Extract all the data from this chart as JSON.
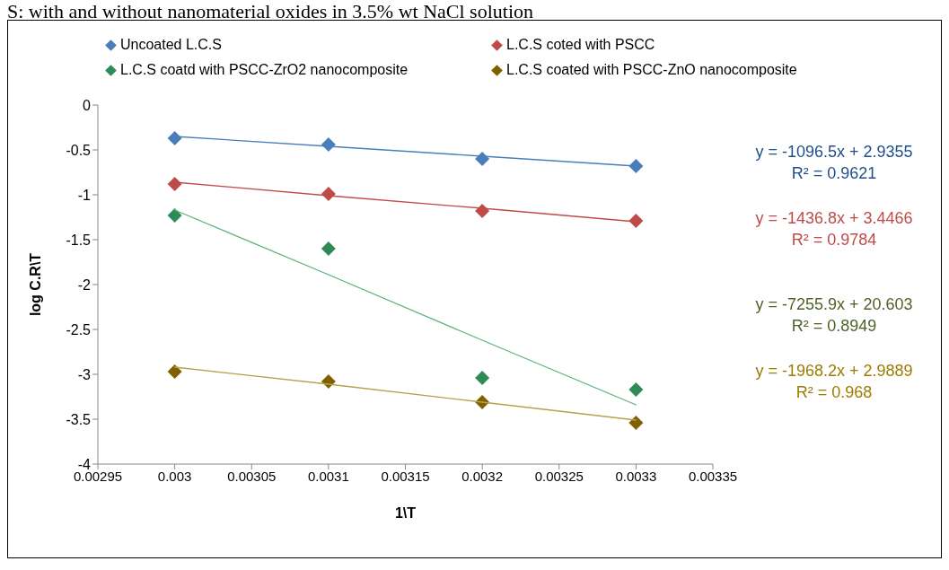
{
  "chart_data": {
    "type": "scatter",
    "title": "S: with and without  nanomaterial oxides in 3.5% wt NaCl solution",
    "xlabel": "1\\T",
    "ylabel": "log C.R\\T",
    "x": [
      0.003,
      0.0031,
      0.0032,
      0.0033
    ],
    "series": [
      {
        "name": "Uncoated L.C.S",
        "color": "#4a7ebb",
        "values": [
          -0.37,
          -0.44,
          -0.6,
          -0.68
        ]
      },
      {
        "name": "L.C.S coted with PSCC",
        "color": "#be4b48",
        "values": [
          -0.88,
          -0.99,
          -1.18,
          -1.29
        ]
      },
      {
        "name": "L.C.S coatd with PSCC-ZrO2 nanocomposite",
        "color": "#2e8b57",
        "values": [
          -1.23,
          -1.6,
          -3.04,
          -3.17
        ]
      },
      {
        "name": "L.C.S coated with PSCC-ZnO nanocomposite",
        "color": "#7f6000",
        "values": [
          -2.97,
          -3.08,
          -3.31,
          -3.54
        ]
      },
      {
        "type": "line",
        "marker": "none",
        "color": "#4a7ebb",
        "values": [
          -0.35,
          -0.46,
          -0.57,
          -0.68
        ]
      },
      {
        "type": "line",
        "marker": "none",
        "color": "#be4b48",
        "values": [
          -0.86,
          -1.01,
          -1.15,
          -1.3
        ]
      },
      {
        "type": "line",
        "marker": "none",
        "color": "#5fb47a",
        "values": [
          -1.17,
          -1.89,
          -2.62,
          -3.34
        ]
      },
      {
        "type": "line",
        "marker": "none",
        "color": "#b8a04a",
        "values": [
          -2.92,
          -3.11,
          -3.31,
          -3.51
        ]
      }
    ],
    "annotations": [
      "y = -1096.5x + 2.9355\nR² = 0.9621",
      "y = -1436.8x + 3.4466\nR² = 0.9784",
      "y = -7255.9x + 20.603\nR² = 0.8949",
      "y = -1968.2x + 2.9889\nR² = 0.968"
    ],
    "xlim": [
      0.00295,
      0.00335
    ],
    "xticks": [
      0.00295,
      0.003,
      0.00305,
      0.0031,
      0.00315,
      0.0032,
      0.00325,
      0.0033,
      0.00335
    ],
    "ylim": [
      -4,
      0
    ],
    "yticks": [
      -4,
      -3.5,
      -3,
      -2.5,
      -2,
      -1.5,
      -1,
      -0.5,
      0
    ],
    "marker": "diamond",
    "legend": "top",
    "grid": false
  }
}
